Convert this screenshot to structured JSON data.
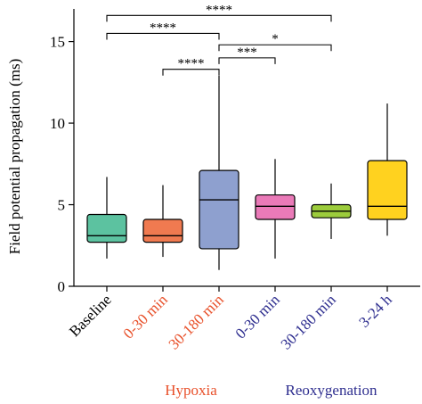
{
  "chart_data": {
    "type": "box",
    "ylabel": "Field potential propagation (ms)",
    "ylim": [
      0,
      17
    ],
    "yticks": [
      0,
      5,
      10,
      15
    ],
    "categories": [
      {
        "label": "Baseline",
        "color": "#000000"
      },
      {
        "label": "0-30 min",
        "color": "#e8502a"
      },
      {
        "label": "30-180 min",
        "color": "#e8502a"
      },
      {
        "label": "0-30 min",
        "color": "#2e2e8f"
      },
      {
        "label": "30-180 min",
        "color": "#2e2e8f"
      },
      {
        "label": "3-24 h",
        "color": "#2e2e8f"
      }
    ],
    "boxes": [
      {
        "min": 1.7,
        "q1": 2.7,
        "median": 3.1,
        "q3": 4.4,
        "max": 6.7,
        "fill": "#5cc2a0"
      },
      {
        "min": 1.8,
        "q1": 2.7,
        "median": 3.1,
        "q3": 4.1,
        "max": 6.2,
        "fill": "#f07a50"
      },
      {
        "min": 1.0,
        "q1": 2.3,
        "median": 5.3,
        "q3": 7.1,
        "max": 12.9,
        "fill": "#8ea0cf"
      },
      {
        "min": 1.7,
        "q1": 4.1,
        "median": 4.9,
        "q3": 5.6,
        "max": 7.8,
        "fill": "#ea7ab8"
      },
      {
        "min": 2.9,
        "q1": 4.2,
        "median": 4.6,
        "q3": 5.0,
        "max": 6.3,
        "fill": "#9ccc3c"
      },
      {
        "min": 3.1,
        "q1": 4.1,
        "median": 4.9,
        "q3": 7.7,
        "max": 11.2,
        "fill": "#ffd21f"
      }
    ],
    "significance": [
      {
        "from": 0,
        "to": 4,
        "y": 16.6,
        "label": "****"
      },
      {
        "from": 0,
        "to": 2,
        "y": 15.5,
        "label": "****"
      },
      {
        "from": 2,
        "to": 4,
        "y": 14.8,
        "label": "*"
      },
      {
        "from": 2,
        "to": 3,
        "y": 14.0,
        "label": "***"
      },
      {
        "from": 1,
        "to": 2,
        "y": 13.3,
        "label": "****"
      }
    ],
    "groups": [
      {
        "label": "Hypoxia",
        "color": "#e8502a",
        "span": [
          1,
          2
        ]
      },
      {
        "label": "Reoxygenation",
        "color": "#2e2e8f",
        "span": [
          3,
          5
        ]
      }
    ]
  }
}
